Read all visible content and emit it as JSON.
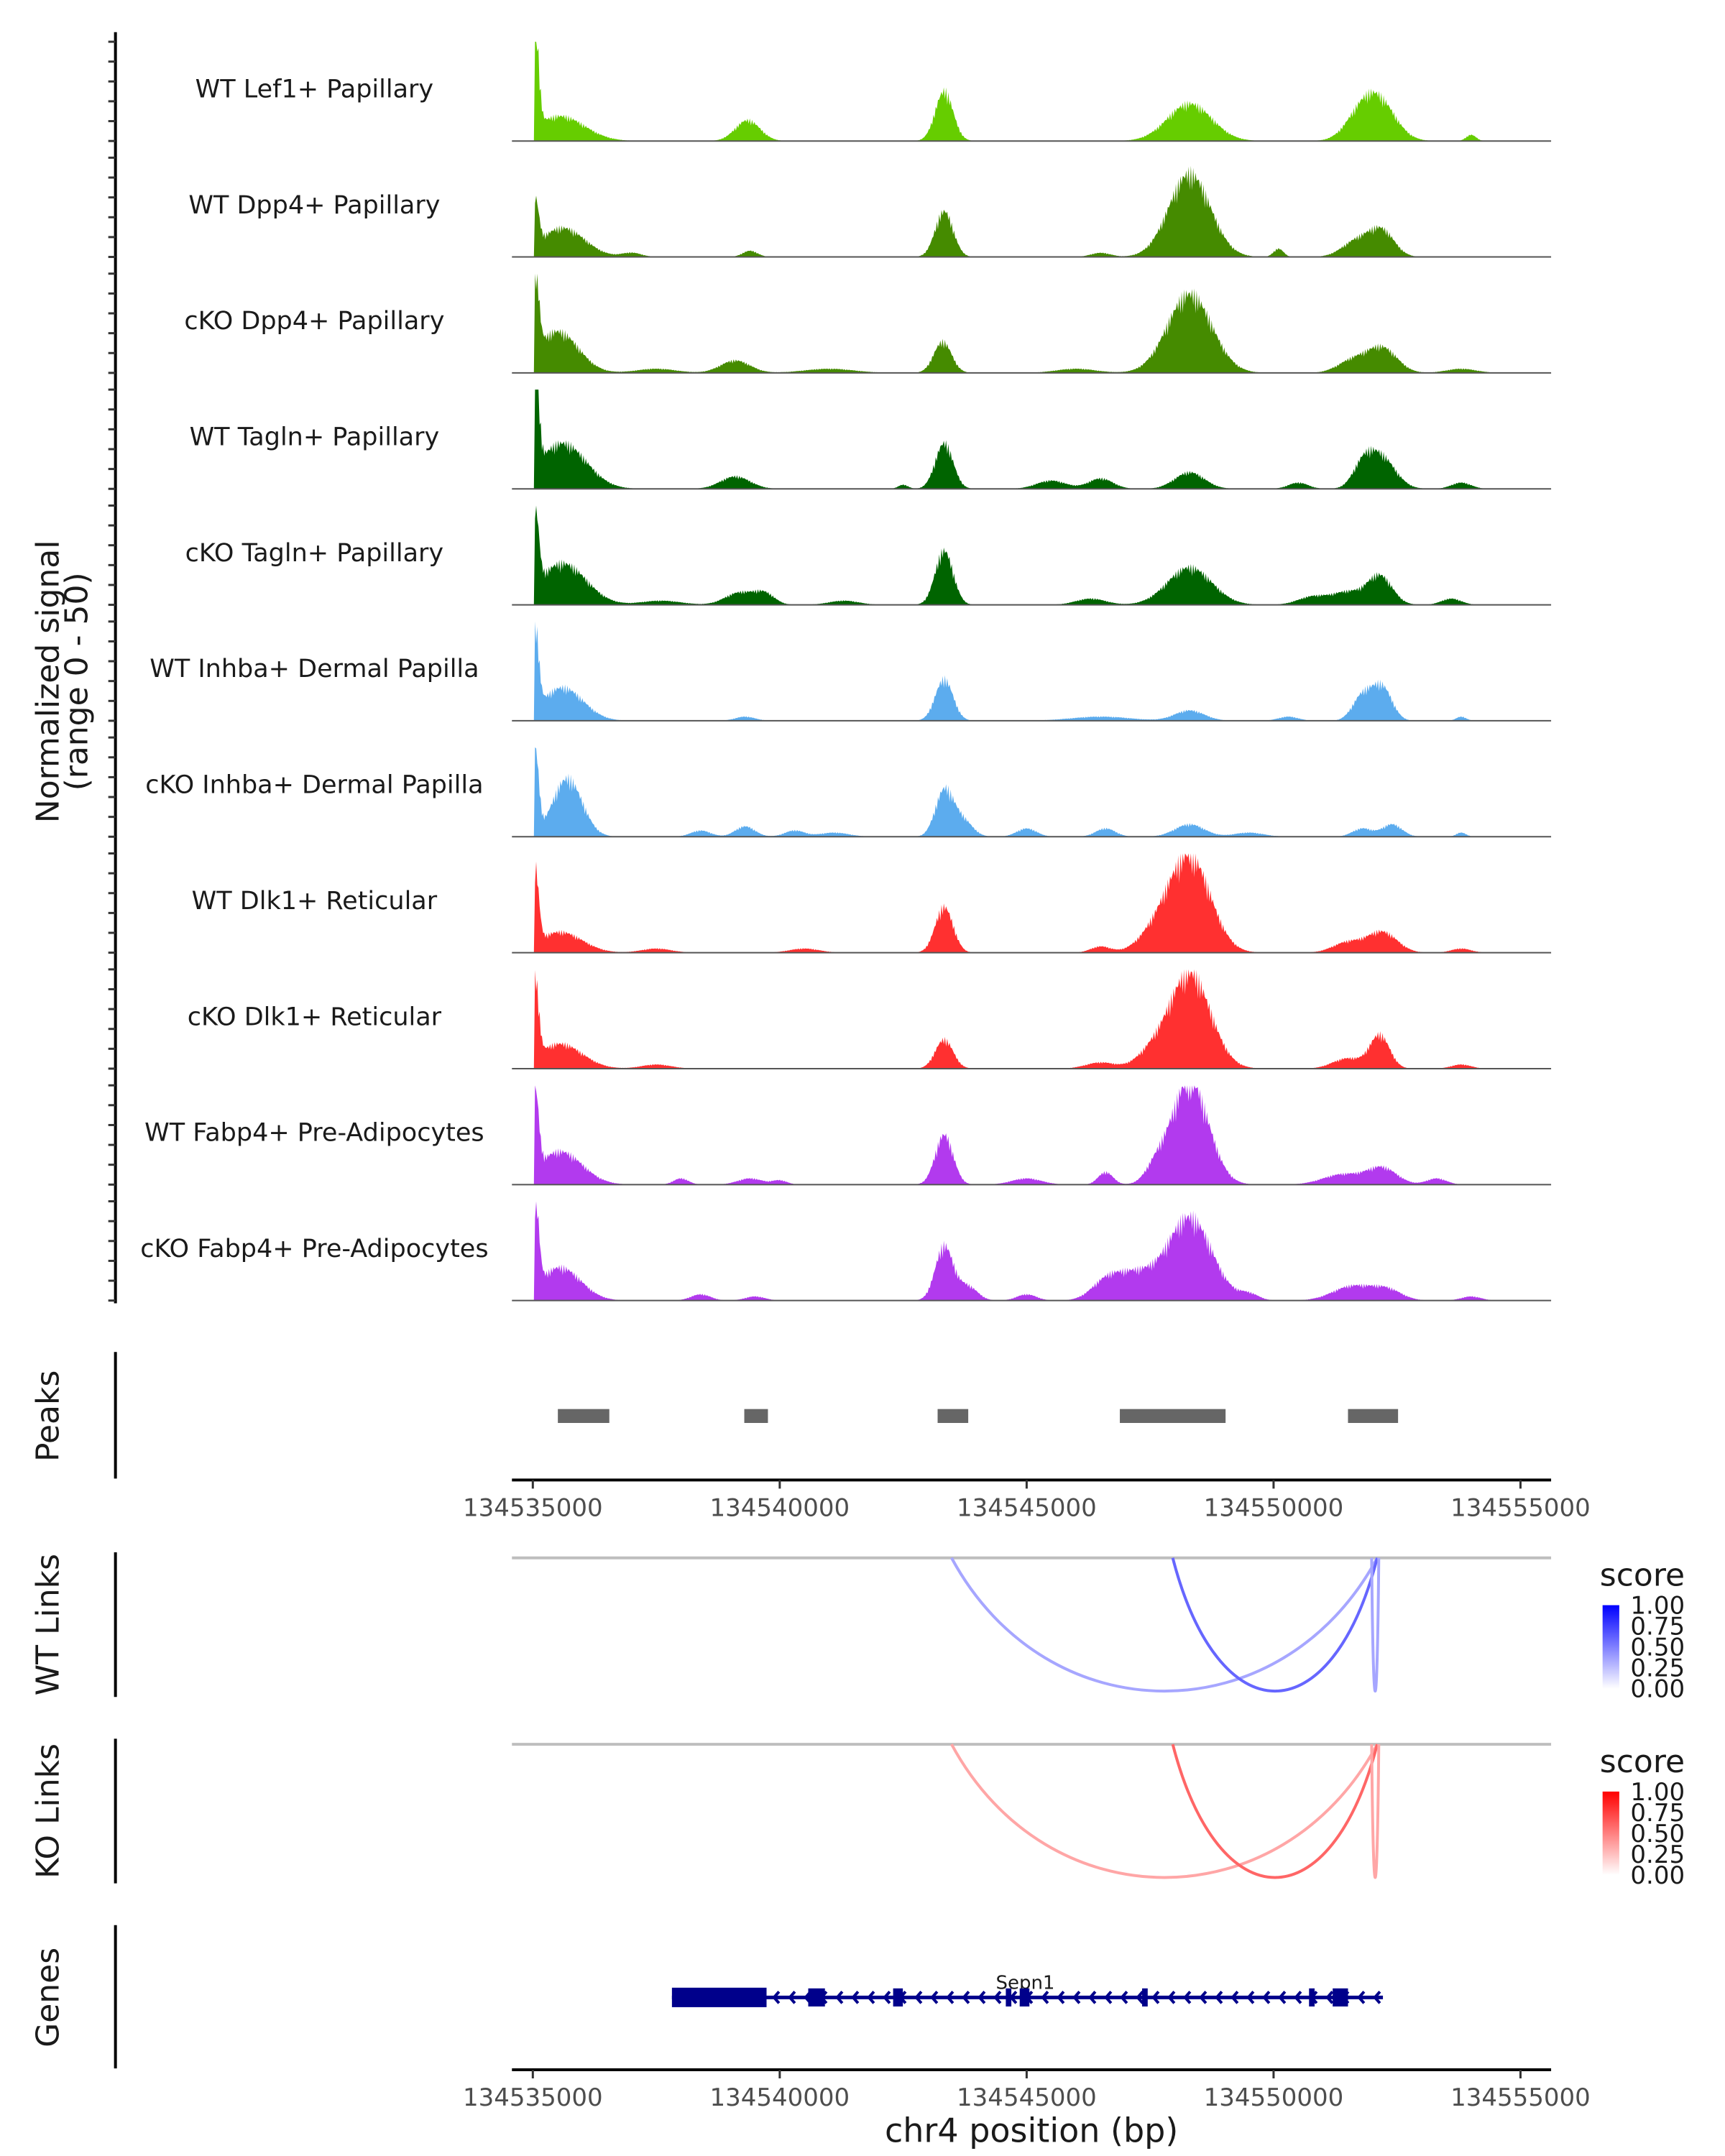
{
  "chart_data": {
    "type": "area",
    "title": "",
    "region": {
      "chrom": "chr4",
      "start": 134534577,
      "end": 134555620
    },
    "xlabel": "chr4 position (bp)",
    "x_ticks": [
      134535000,
      134540000,
      134545000,
      134550000,
      134555000
    ],
    "x_tick_labels": [
      "134535000",
      "134540000",
      "134545000",
      "134550000",
      "134555000"
    ],
    "coverage_ylabel_line1": "Normalized signal",
    "coverage_ylabel_line2": "(range 0 - 50)",
    "ylim": [
      0,
      50
    ],
    "coverage_tracks": [
      {
        "name": "WT Lef1+ Papillary",
        "color": "#66CD00",
        "peaks": [
          [
            134535050,
            50,
            70
          ],
          [
            134535550,
            12,
            500
          ],
          [
            134539350,
            10,
            250
          ],
          [
            134543330,
            24,
            180
          ],
          [
            134548300,
            18,
            450
          ],
          [
            134552100,
            20,
            350
          ],
          [
            134551700,
            7,
            300
          ],
          [
            134554000,
            3,
            100
          ]
        ]
      },
      {
        "name": "WT Dpp4+ Papillary",
        "color": "#458B00",
        "peaks": [
          [
            134535050,
            22,
            70
          ],
          [
            134535600,
            14,
            450
          ],
          [
            134539400,
            3,
            150
          ],
          [
            134543330,
            22,
            180
          ],
          [
            134548300,
            40,
            420
          ],
          [
            134550100,
            4,
            100
          ],
          [
            134551700,
            8,
            300
          ],
          [
            134552200,
            12,
            250
          ],
          [
            134537000,
            2,
            200
          ],
          [
            134546500,
            2,
            200
          ]
        ]
      },
      {
        "name": "cKO Dpp4+ Papillary",
        "color": "#458B00",
        "peaks": [
          [
            134535050,
            42,
            70
          ],
          [
            134535500,
            20,
            420
          ],
          [
            134539100,
            6,
            300
          ],
          [
            134543300,
            15,
            180
          ],
          [
            134548300,
            38,
            450
          ],
          [
            134552200,
            12,
            300
          ],
          [
            134551600,
            6,
            300
          ],
          [
            134537500,
            2,
            400
          ],
          [
            134541000,
            2,
            500
          ],
          [
            134546000,
            2,
            400
          ],
          [
            134553800,
            2,
            300
          ]
        ]
      },
      {
        "name": "WT Tagln+ Papillary",
        "color": "#006400",
        "peaks": [
          [
            134535050,
            52,
            70
          ],
          [
            134535600,
            22,
            480
          ],
          [
            134539100,
            6,
            300
          ],
          [
            134543330,
            22,
            180
          ],
          [
            134548300,
            8,
            300
          ],
          [
            134552150,
            16,
            300
          ],
          [
            134551800,
            8,
            200
          ],
          [
            134545500,
            4,
            300
          ],
          [
            134546500,
            5,
            250
          ],
          [
            134550500,
            3,
            200
          ],
          [
            134553800,
            3,
            200
          ],
          [
            134542500,
            2,
            100
          ]
        ]
      },
      {
        "name": "cKO Tagln+ Papillary",
        "color": "#006400",
        "peaks": [
          [
            134535050,
            38,
            70
          ],
          [
            134535600,
            20,
            480
          ],
          [
            134539200,
            6,
            300
          ],
          [
            134539700,
            5,
            200
          ],
          [
            134543330,
            26,
            180
          ],
          [
            134548300,
            18,
            450
          ],
          [
            134552150,
            14,
            250
          ],
          [
            134551500,
            6,
            300
          ],
          [
            134546300,
            3,
            300
          ],
          [
            134550800,
            4,
            300
          ],
          [
            134553600,
            3,
            200
          ],
          [
            134537600,
            2,
            400
          ],
          [
            134541300,
            2,
            300
          ]
        ]
      },
      {
        "name": "WT Inhba+ Dermal Papilla",
        "color": "#5CACEE",
        "peaks": [
          [
            134535050,
            40,
            70
          ],
          [
            134535600,
            16,
            420
          ],
          [
            134543330,
            20,
            180
          ],
          [
            134548300,
            5,
            300
          ],
          [
            134551800,
            12,
            200
          ],
          [
            134552200,
            16,
            200
          ],
          [
            134546500,
            2,
            600
          ],
          [
            134539300,
            2,
            200
          ],
          [
            134550300,
            2,
            200
          ],
          [
            134553800,
            2,
            100
          ]
        ]
      },
      {
        "name": "cKO Inhba+ Dermal Papilla",
        "color": "#5CACEE",
        "peaks": [
          [
            134535050,
            40,
            70
          ],
          [
            134535700,
            28,
            300
          ],
          [
            134543330,
            22,
            180
          ],
          [
            134543700,
            8,
            200
          ],
          [
            134539300,
            5,
            200
          ],
          [
            134538400,
            3,
            200
          ],
          [
            134548300,
            6,
            300
          ],
          [
            134551800,
            4,
            200
          ],
          [
            134552400,
            6,
            200
          ],
          [
            134546600,
            4,
            200
          ],
          [
            134545000,
            4,
            200
          ],
          [
            134541100,
            2,
            300
          ],
          [
            134540300,
            3,
            200
          ],
          [
            134549500,
            2,
            300
          ],
          [
            134553800,
            2,
            100
          ]
        ]
      },
      {
        "name": "WT Dlk1+ Reticular",
        "color": "#FF3030",
        "peaks": [
          [
            134535050,
            36,
            70
          ],
          [
            134535550,
            10,
            450
          ],
          [
            134543330,
            22,
            180
          ],
          [
            134548300,
            46,
            420
          ],
          [
            134547600,
            8,
            350
          ],
          [
            134552200,
            10,
            300
          ],
          [
            134551500,
            5,
            300
          ],
          [
            134546500,
            3,
            200
          ],
          [
            134537500,
            2,
            300
          ],
          [
            134540500,
            2,
            300
          ],
          [
            134553800,
            2,
            200
          ]
        ]
      },
      {
        "name": "cKO Dlk1+ Reticular",
        "color": "#FF3030",
        "peaks": [
          [
            134535050,
            38,
            70
          ],
          [
            134535550,
            12,
            450
          ],
          [
            134543330,
            14,
            180
          ],
          [
            134548300,
            46,
            420
          ],
          [
            134547500,
            6,
            300
          ],
          [
            134552150,
            16,
            200
          ],
          [
            134551500,
            5,
            300
          ],
          [
            134546500,
            3,
            300
          ],
          [
            134537500,
            2,
            300
          ],
          [
            134553800,
            2,
            200
          ]
        ]
      },
      {
        "name": "WT Fabp4+ Pre-Adipocytes",
        "color": "#B23AEE",
        "peaks": [
          [
            134535050,
            38,
            70
          ],
          [
            134535550,
            16,
            450
          ],
          [
            134543330,
            24,
            180
          ],
          [
            134548300,
            50,
            380
          ],
          [
            134547600,
            6,
            200
          ],
          [
            134546600,
            6,
            150
          ],
          [
            134552200,
            8,
            300
          ],
          [
            134551400,
            5,
            400
          ],
          [
            134538000,
            3,
            150
          ],
          [
            134539400,
            3,
            250
          ],
          [
            134540000,
            2,
            150
          ],
          [
            134545000,
            3,
            300
          ],
          [
            134553300,
            3,
            200
          ]
        ]
      },
      {
        "name": "cKO Fabp4+ Pre-Adipocytes",
        "color": "#B23AEE",
        "peaks": [
          [
            134535050,
            44,
            70
          ],
          [
            134535550,
            16,
            420
          ],
          [
            134543330,
            26,
            180
          ],
          [
            134543800,
            7,
            200
          ],
          [
            134548300,
            40,
            450
          ],
          [
            134547200,
            12,
            400
          ],
          [
            134546600,
            8,
            300
          ],
          [
            134551600,
            7,
            400
          ],
          [
            134552300,
            5,
            300
          ],
          [
            134538400,
            3,
            200
          ],
          [
            134539500,
            2,
            200
          ],
          [
            134545000,
            3,
            200
          ],
          [
            134549500,
            3,
            200
          ],
          [
            134554000,
            2,
            200
          ]
        ]
      }
    ],
    "peaks_track": {
      "label": "Peaks",
      "color": "#666666",
      "ranges": [
        [
          134535507,
          134536549
        ],
        [
          134539282,
          134539761
        ],
        [
          134543197,
          134543817
        ],
        [
          134546887,
          134549028
        ],
        [
          134551507,
          134552521
        ]
      ]
    },
    "link_tracks": [
      {
        "label": "WT Links",
        "legend_title": "score",
        "low_color": "#FFFFFF",
        "high_color": "#0000FF",
        "legend_ticks": [
          "1.00",
          "0.75",
          "0.50",
          "0.25",
          "0.00"
        ],
        "links": [
          {
            "start": 134543479,
            "end": 134552099,
            "score": 0.35
          },
          {
            "start": 134547958,
            "end": 134552099,
            "score": 0.6
          },
          {
            "start": 134551986,
            "end": 134552130,
            "score": 0.35
          }
        ]
      },
      {
        "label": "KO Links",
        "legend_title": "score",
        "low_color": "#FFFFFF",
        "high_color": "#FF0000",
        "legend_ticks": [
          "1.00",
          "0.75",
          "0.50",
          "0.25",
          "0.00"
        ],
        "links": [
          {
            "start": 134543479,
            "end": 134552099,
            "score": 0.35
          },
          {
            "start": 134547958,
            "end": 134552099,
            "score": 0.6
          },
          {
            "start": 134551986,
            "end": 134552130,
            "score": 0.35
          }
        ]
      }
    ],
    "genes_track": {
      "label": "Genes",
      "color": "#00008B",
      "genes": [
        {
          "name": "Sepn1",
          "strand": "-",
          "start": 134537817,
          "end": 134552127,
          "exons": [
            [
              134537817,
              134539733
            ],
            [
              134540577,
              134540915
            ],
            [
              134542296,
              134542493
            ],
            [
              134544578,
              134544690
            ],
            [
              134544859,
              134545056
            ],
            [
              134547338,
              134547451
            ],
            [
              134550718,
              134550831
            ],
            [
              134551197,
              134551507
            ]
          ]
        }
      ]
    }
  }
}
